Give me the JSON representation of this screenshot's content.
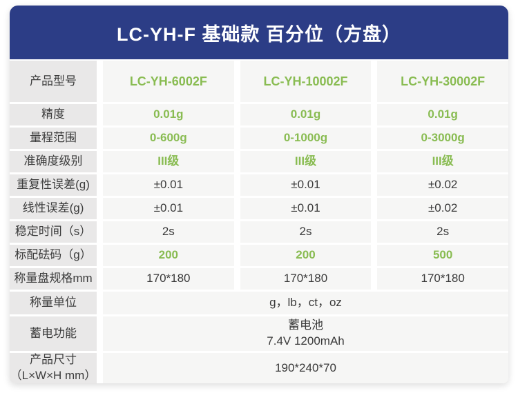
{
  "header": {
    "title": "LC-YH-F 基础款 百分位（方盘）"
  },
  "colors": {
    "header_navy": "#2c3d86",
    "highlight_green": "#89bc52",
    "label_cell_bg": "#e9e8e8",
    "value_cell_bg": "#f6f6f5",
    "value_text_dark": "#3a3a3a"
  },
  "table": {
    "rows": [
      {
        "label": "产品型号",
        "values": [
          "LC-YH-6002F",
          "LC-YH-10002F",
          "LC-YH-30002F"
        ]
      },
      {
        "label": "精度",
        "values": [
          "0.01g",
          "0.01g",
          "0.01g"
        ]
      },
      {
        "label": "量程范围",
        "values": [
          "0-600g",
          "0-1000g",
          "0-3000g"
        ]
      },
      {
        "label": "准确度级别",
        "values": [
          "III级",
          "III级",
          "III级"
        ]
      },
      {
        "label": "重复性误差(g)",
        "values": [
          "±0.01",
          "±0.01",
          "±0.02"
        ]
      },
      {
        "label": "线性误差(g)",
        "values": [
          "±0.01",
          "±0.01",
          "±0.02"
        ]
      },
      {
        "label": "稳定时间（s）",
        "values": [
          "2s",
          "2s",
          "2s"
        ]
      },
      {
        "label": "标配砝码（g）",
        "values": [
          "200",
          "200",
          "500"
        ]
      },
      {
        "label": "称量盘规格mm",
        "values": [
          "170*180",
          "170*180",
          "170*180"
        ]
      },
      {
        "label": "称量单位",
        "span_value": "g，lb，ct，oz"
      },
      {
        "label": "蓄电功能",
        "span_line1": "蓄电池",
        "span_line2": "7.4V 1200mAh"
      },
      {
        "label_line1": "产品尺寸",
        "label_line2": "（L×W×H mm）",
        "span_value": "190*240*70"
      }
    ]
  }
}
